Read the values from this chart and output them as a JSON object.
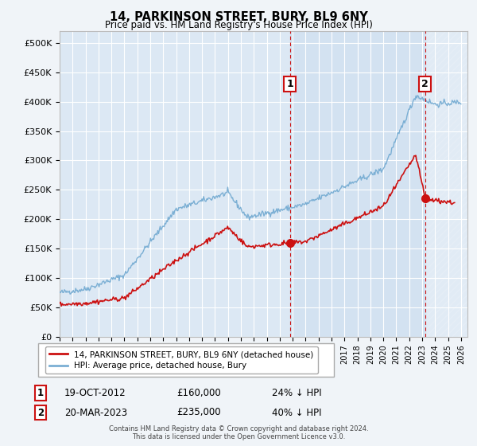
{
  "title": "14, PARKINSON STREET, BURY, BL9 6NY",
  "subtitle": "Price paid vs. HM Land Registry's House Price Index (HPI)",
  "ylabel_ticks": [
    "£0",
    "£50K",
    "£100K",
    "£150K",
    "£200K",
    "£250K",
    "£300K",
    "£350K",
    "£400K",
    "£450K",
    "£500K"
  ],
  "ytick_values": [
    0,
    50000,
    100000,
    150000,
    200000,
    250000,
    300000,
    350000,
    400000,
    450000,
    500000
  ],
  "ylim": [
    0,
    520000
  ],
  "xlim_start": 1995.0,
  "xlim_end": 2026.5,
  "hpi_color": "#7bafd4",
  "price_color": "#cc1111",
  "background_color": "#f0f4f8",
  "plot_bg_color": "#dce8f4",
  "grid_color": "#ffffff",
  "sale1_date": 2012.8,
  "sale1_price": 160000,
  "sale1_label": "1",
  "sale2_date": 2023.22,
  "sale2_price": 235000,
  "sale2_label": "2",
  "vline_color": "#cc1111",
  "highlight_color": "#c5d9ee",
  "legend_line1": "14, PARKINSON STREET, BURY, BL9 6NY (detached house)",
  "legend_line2": "HPI: Average price, detached house, Bury",
  "note1_label": "1",
  "note1_date": "19-OCT-2012",
  "note1_price": "£160,000",
  "note1_hpi": "24% ↓ HPI",
  "note2_label": "2",
  "note2_date": "20-MAR-2023",
  "note2_price": "£235,000",
  "note2_hpi": "40% ↓ HPI",
  "footer": "Contains HM Land Registry data © Crown copyright and database right 2024.\nThis data is licensed under the Open Government Licence v3.0."
}
